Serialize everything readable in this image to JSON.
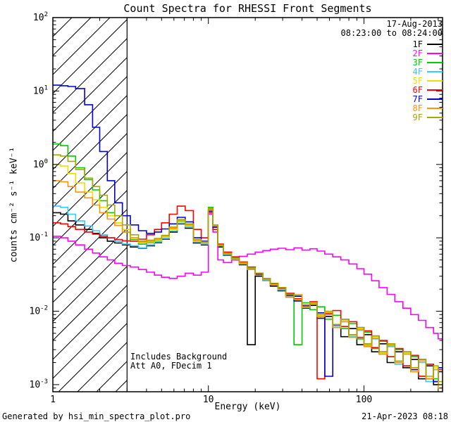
{
  "footer": {
    "left": "Generated by hsi_min_spectra_plot.pro",
    "right": "21-Apr-2023 08:18"
  },
  "chart_data": {
    "type": "line",
    "x_scale": "log",
    "y_scale": "log",
    "title": "Count Spectra for RHESSI Front Segments",
    "date_label": "17-Aug-2013",
    "time_range_label": "08:23:00 to 08:24:00",
    "xlabel": "Energy (keV)",
    "ylabel": "counts cm⁻² s⁻¹ keV⁻¹",
    "xlim": [
      1,
      320
    ],
    "ylim": [
      0.0008,
      100
    ],
    "xticks": {
      "values": [
        1,
        10,
        100
      ],
      "labels": [
        "1",
        "10",
        "100"
      ]
    },
    "yticks": {
      "base_label": "10",
      "exponents": [
        2,
        1,
        0,
        -1,
        -2,
        -3
      ]
    },
    "hatch_region": {
      "x0": 1,
      "x1": 3
    },
    "annotations": [
      "Includes Background",
      "Att A0, FDecim 1"
    ],
    "legend_position": "top-right",
    "grid": false,
    "x": [
      1.0,
      1.12,
      1.25,
      1.4,
      1.6,
      1.8,
      2.0,
      2.24,
      2.5,
      2.8,
      3.15,
      3.55,
      4.0,
      4.5,
      5.0,
      5.6,
      6.3,
      7.1,
      8.0,
      9.0,
      10.0,
      10.7,
      11.5,
      12.5,
      14.1,
      15.8,
      17.8,
      20.0,
      22.4,
      25.0,
      28.0,
      31.5,
      35.5,
      40.0,
      45.0,
      50.0,
      56.0,
      63.0,
      71.0,
      80.0,
      90.0,
      100.0,
      112.0,
      125.0,
      141.0,
      158.0,
      178.0,
      200.0,
      224.0,
      250.0,
      280.0,
      300.0
    ],
    "series": [
      {
        "name": "1F",
        "color": "#000000",
        "values": [
          0.22,
          0.21,
          0.17,
          0.15,
          0.13,
          0.115,
          0.1,
          0.09,
          0.085,
          0.08,
          0.075,
          0.072,
          0.078,
          0.086,
          0.096,
          0.12,
          0.155,
          0.135,
          0.085,
          0.08,
          0.24,
          0.14,
          0.075,
          0.058,
          0.05,
          0.043,
          0.0035,
          0.03,
          0.026,
          0.022,
          0.019,
          0.0155,
          0.016,
          0.011,
          0.012,
          0.008,
          0.0085,
          0.006,
          0.0045,
          0.0058,
          0.0035,
          0.0048,
          0.0028,
          0.0036,
          0.002,
          0.0028,
          0.0017,
          0.0022,
          0.0012,
          0.0018,
          0.001,
          0.0015
        ]
      },
      {
        "name": "2F",
        "color": "#ff00ff",
        "values": [
          0.105,
          0.1,
          0.09,
          0.08,
          0.07,
          0.062,
          0.055,
          0.05,
          0.045,
          0.042,
          0.04,
          0.037,
          0.034,
          0.031,
          0.029,
          0.028,
          0.03,
          0.033,
          0.031,
          0.034,
          0.21,
          0.12,
          0.05,
          0.046,
          0.05,
          0.056,
          0.06,
          0.064,
          0.067,
          0.07,
          0.072,
          0.069,
          0.073,
          0.068,
          0.071,
          0.066,
          0.06,
          0.055,
          0.05,
          0.044,
          0.038,
          0.032,
          0.026,
          0.021,
          0.017,
          0.0135,
          0.011,
          0.009,
          0.0075,
          0.006,
          0.005,
          0.0042
        ]
      },
      {
        "name": "3F",
        "color": "#00cc00",
        "values": [
          1.9,
          1.8,
          1.3,
          0.9,
          0.62,
          0.45,
          0.32,
          0.22,
          0.16,
          0.12,
          0.095,
          0.082,
          0.086,
          0.092,
          0.102,
          0.13,
          0.17,
          0.148,
          0.09,
          0.085,
          0.26,
          0.15,
          0.08,
          0.06,
          0.052,
          0.044,
          0.037,
          0.031,
          0.027,
          0.023,
          0.02,
          0.016,
          0.0035,
          0.013,
          0.0105,
          0.0115,
          0.0078,
          0.0088,
          0.0058,
          0.0068,
          0.0042,
          0.0052,
          0.0031,
          0.0039,
          0.0024,
          0.003,
          0.0018,
          0.0024,
          0.0013,
          0.0019,
          0.0012,
          0.001
        ]
      },
      {
        "name": "4F",
        "color": "#33ccff",
        "values": [
          0.27,
          0.26,
          0.21,
          0.17,
          0.145,
          0.125,
          0.11,
          0.1,
          0.09,
          0.082,
          0.078,
          0.073,
          0.08,
          0.088,
          0.098,
          0.124,
          0.158,
          0.14,
          0.088,
          0.082,
          0.25,
          0.148,
          0.078,
          0.059,
          0.051,
          0.044,
          0.037,
          0.031,
          0.026,
          0.023,
          0.0195,
          0.0155,
          0.0165,
          0.0112,
          0.0125,
          0.0082,
          0.0095,
          0.0061,
          0.0072,
          0.0045,
          0.0055,
          0.0034,
          0.0042,
          0.0026,
          0.0033,
          0.0019,
          0.0026,
          0.0015,
          0.002,
          0.0011,
          0.0016,
          0.001
        ]
      },
      {
        "name": "5F",
        "color": "#f0dc00",
        "values": [
          1.0,
          0.95,
          0.75,
          0.56,
          0.42,
          0.33,
          0.26,
          0.2,
          0.16,
          0.13,
          0.1,
          0.086,
          0.088,
          0.093,
          0.102,
          0.13,
          0.165,
          0.145,
          0.09,
          0.085,
          0.25,
          0.15,
          0.08,
          0.061,
          0.052,
          0.045,
          0.038,
          0.032,
          0.027,
          0.0235,
          0.0205,
          0.0162,
          0.0142,
          0.0118,
          0.0125,
          0.0088,
          0.0098,
          0.0063,
          0.0075,
          0.0047,
          0.0058,
          0.0035,
          0.0045,
          0.0027,
          0.0035,
          0.002,
          0.0027,
          0.0016,
          0.0021,
          0.0012,
          0.0017,
          0.001
        ]
      },
      {
        "name": "6F",
        "color": "#ff0000",
        "values": [
          0.16,
          0.155,
          0.142,
          0.13,
          0.12,
          0.112,
          0.105,
          0.1,
          0.095,
          0.091,
          0.09,
          0.096,
          0.11,
          0.13,
          0.16,
          0.21,
          0.27,
          0.235,
          0.13,
          0.1,
          0.22,
          0.13,
          0.082,
          0.064,
          0.055,
          0.047,
          0.04,
          0.033,
          0.028,
          0.024,
          0.021,
          0.0175,
          0.0148,
          0.0122,
          0.0135,
          0.0012,
          0.0092,
          0.0102,
          0.0062,
          0.0072,
          0.0044,
          0.0054,
          0.0032,
          0.004,
          0.0024,
          0.0031,
          0.0018,
          0.0025,
          0.0013,
          0.0019,
          0.0011,
          0.0016
        ]
      },
      {
        "name": "7F",
        "color": "#0000dd",
        "values": [
          12.0,
          11.8,
          11.5,
          10.8,
          6.5,
          3.2,
          1.5,
          0.6,
          0.3,
          0.2,
          0.15,
          0.125,
          0.115,
          0.12,
          0.132,
          0.155,
          0.19,
          0.165,
          0.1,
          0.09,
          0.23,
          0.14,
          0.08,
          0.062,
          0.053,
          0.046,
          0.038,
          0.032,
          0.027,
          0.0235,
          0.0205,
          0.0165,
          0.0138,
          0.0118,
          0.0128,
          0.0095,
          0.0013,
          0.0065,
          0.0078,
          0.0048,
          0.006,
          0.0036,
          0.0046,
          0.0028,
          0.0036,
          0.0021,
          0.0028,
          0.0016,
          0.0022,
          0.0012,
          0.0011,
          0.0017
        ]
      },
      {
        "name": "8F",
        "color": "#ff9500",
        "values": [
          0.6,
          0.58,
          0.5,
          0.42,
          0.35,
          0.28,
          0.22,
          0.18,
          0.148,
          0.12,
          0.1,
          0.088,
          0.09,
          0.096,
          0.106,
          0.135,
          0.172,
          0.15,
          0.092,
          0.086,
          0.24,
          0.145,
          0.078,
          0.06,
          0.052,
          0.045,
          0.038,
          0.031,
          0.027,
          0.023,
          0.02,
          0.0158,
          0.0168,
          0.0115,
          0.0128,
          0.0085,
          0.0095,
          0.006,
          0.0072,
          0.0044,
          0.0056,
          0.0033,
          0.0043,
          0.0026,
          0.0034,
          0.002,
          0.0026,
          0.0015,
          0.0021,
          0.0012,
          0.0016,
          0.0009
        ]
      },
      {
        "name": "9F",
        "color": "#a8a800",
        "values": [
          1.35,
          1.3,
          1.1,
          0.85,
          0.65,
          0.5,
          0.38,
          0.28,
          0.2,
          0.15,
          0.11,
          0.09,
          0.093,
          0.098,
          0.108,
          0.14,
          0.178,
          0.155,
          0.095,
          0.088,
          0.25,
          0.15,
          0.08,
          0.062,
          0.053,
          0.046,
          0.039,
          0.033,
          0.028,
          0.024,
          0.021,
          0.017,
          0.0145,
          0.0122,
          0.0132,
          0.009,
          0.01,
          0.0066,
          0.0078,
          0.0048,
          0.006,
          0.0036,
          0.0046,
          0.0028,
          0.0036,
          0.0021,
          0.0028,
          0.0017,
          0.0022,
          0.0013,
          0.0018,
          0.0011
        ]
      }
    ]
  }
}
